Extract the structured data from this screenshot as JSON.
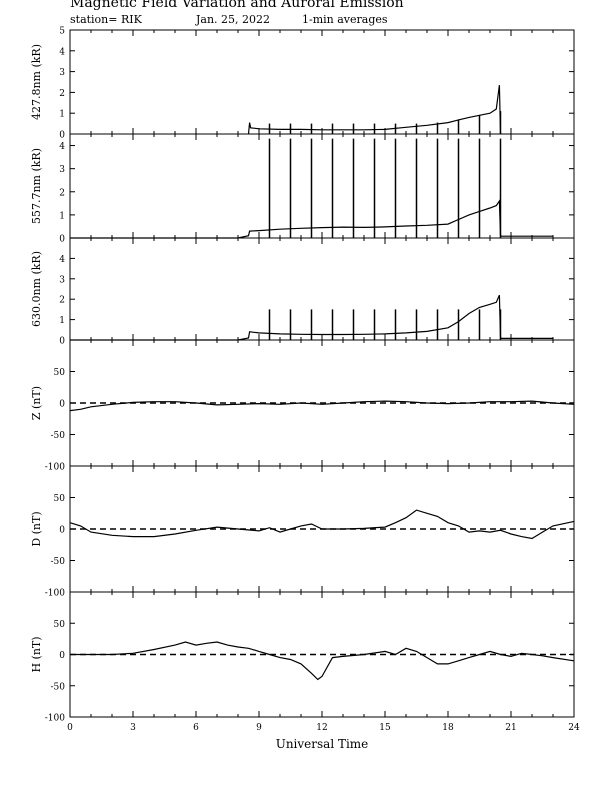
{
  "header": {
    "title": "Magnetic Field Variation and Auroral Emission",
    "station": "station= RIK",
    "date": "Jan. 25, 2022",
    "averaging": "1-min averages"
  },
  "chart_data": [
    {
      "type": "line",
      "ylabel": "427.8nm (kR)",
      "ylim": [
        0,
        5
      ],
      "yticks": [
        0,
        1,
        2,
        3,
        4,
        5
      ],
      "xlim": [
        0,
        24
      ],
      "series": [
        {
          "x": [
            8.5,
            8.55,
            8.6,
            9,
            10,
            11,
            12,
            13,
            14,
            15,
            16,
            17,
            18,
            18.5,
            19,
            19.5,
            20,
            20.3,
            20.45,
            20.5
          ],
          "y": [
            0.0,
            0.55,
            0.3,
            0.25,
            0.22,
            0.22,
            0.2,
            0.2,
            0.2,
            0.22,
            0.32,
            0.42,
            0.55,
            0.68,
            0.8,
            0.9,
            1.0,
            1.2,
            2.35,
            0.0
          ]
        }
      ],
      "spikes": {
        "x": [
          9.5,
          10.5,
          11.5,
          12.5,
          13.5,
          14.5,
          15.5,
          16.5,
          17.5,
          18.5,
          19.5,
          20.5
        ],
        "y": [
          0.5,
          0.5,
          0.5,
          0.5,
          0.5,
          0.5,
          0.5,
          0.5,
          0.55,
          0.7,
          0.9,
          1.1
        ]
      }
    },
    {
      "type": "line",
      "ylabel": "557.7nm (kR)",
      "ylim": [
        0,
        4.5
      ],
      "yticks": [
        0,
        1,
        2,
        3,
        4
      ],
      "xlim": [
        0,
        24
      ],
      "series": [
        {
          "x": [
            0,
            8,
            8.5,
            8.55,
            9,
            10,
            11,
            12,
            13,
            14,
            15,
            16,
            17,
            18,
            18.5,
            19,
            19.5,
            20,
            20.3,
            20.45,
            20.5,
            20.55,
            23
          ],
          "y": [
            0,
            0,
            0.1,
            0.3,
            0.32,
            0.38,
            0.42,
            0.45,
            0.47,
            0.46,
            0.48,
            0.52,
            0.55,
            0.6,
            0.8,
            1.0,
            1.15,
            1.3,
            1.4,
            1.6,
            0.1,
            0.08,
            0.08
          ]
        }
      ],
      "spikes": {
        "x": [
          9.5,
          10.5,
          11.5,
          12.5,
          13.5,
          14.5,
          15.5,
          16.5,
          17.5,
          18.5,
          19.5,
          20.5
        ],
        "y": [
          4.3,
          4.3,
          4.3,
          4.3,
          4.3,
          4.3,
          4.3,
          4.3,
          4.3,
          4.3,
          4.3,
          4.3
        ]
      }
    },
    {
      "type": "line",
      "ylabel": "630.0nm (kR)",
      "ylim": [
        0,
        5
      ],
      "yticks": [
        0,
        1,
        2,
        3,
        4
      ],
      "xlim": [
        0,
        24
      ],
      "series": [
        {
          "x": [
            0,
            8,
            8.5,
            8.55,
            9,
            10,
            11,
            12,
            13,
            14,
            15,
            16,
            17,
            18,
            18.5,
            19,
            19.5,
            20,
            20.3,
            20.45,
            20.5,
            20.55,
            23
          ],
          "y": [
            0,
            0,
            0.1,
            0.4,
            0.35,
            0.3,
            0.28,
            0.27,
            0.27,
            0.28,
            0.3,
            0.35,
            0.42,
            0.6,
            0.9,
            1.3,
            1.6,
            1.75,
            1.85,
            2.2,
            0.1,
            0.08,
            0.08
          ]
        }
      ],
      "spikes": {
        "x": [
          9.5,
          10.5,
          11.5,
          12.5,
          13.5,
          14.5,
          15.5,
          16.5,
          17.5,
          18.5,
          19.5,
          20.5
        ],
        "y": [
          1.5,
          1.5,
          1.5,
          1.5,
          1.5,
          1.5,
          1.5,
          1.5,
          1.5,
          1.5,
          1.5,
          1.5
        ]
      }
    },
    {
      "type": "line",
      "ylabel": "Z (nT)",
      "ylim": [
        -100,
        100
      ],
      "yticks": [
        -100,
        -50,
        0,
        50
      ],
      "xlim": [
        0,
        24
      ],
      "zero_line": true,
      "series": [
        {
          "x": [
            0,
            0.5,
            1,
            2,
            3,
            4,
            5,
            6,
            7,
            8,
            9,
            10,
            11,
            12,
            13,
            14,
            15,
            16,
            17,
            18,
            19,
            20,
            21,
            22,
            23,
            24
          ],
          "y": [
            -12,
            -10,
            -6,
            -2,
            1,
            2,
            2,
            0,
            -3,
            -2,
            -1,
            -2,
            0,
            -2,
            0,
            2,
            3,
            2,
            0,
            -1,
            0,
            2,
            2,
            3,
            0,
            -2
          ]
        }
      ]
    },
    {
      "type": "line",
      "ylabel": "D (nT)",
      "ylim": [
        -100,
        100
      ],
      "yticks": [
        -100,
        -50,
        0,
        50
      ],
      "xlim": [
        0,
        24
      ],
      "zero_line": true,
      "series": [
        {
          "x": [
            0,
            0.5,
            1,
            2,
            3,
            4,
            5,
            6,
            7,
            8,
            9,
            9.5,
            10,
            10.5,
            11,
            11.5,
            12,
            13,
            14,
            15,
            15.5,
            16,
            16.5,
            17,
            17.5,
            18,
            18.5,
            19,
            19.5,
            20,
            20.5,
            21,
            21.5,
            22,
            22.5,
            23,
            24
          ],
          "y": [
            10,
            5,
            -5,
            -10,
            -12,
            -12,
            -8,
            -2,
            3,
            0,
            -3,
            2,
            -5,
            0,
            5,
            8,
            0,
            0,
            1,
            3,
            10,
            18,
            30,
            25,
            20,
            10,
            5,
            -5,
            -3,
            -5,
            -2,
            -8,
            -12,
            -15,
            -5,
            5,
            12
          ]
        }
      ]
    },
    {
      "type": "line",
      "ylabel": "H (nT)",
      "ylim": [
        -100,
        100
      ],
      "yticks": [
        -100,
        -50,
        0,
        50
      ],
      "xlim": [
        0,
        24
      ],
      "xticks": [
        0,
        3,
        6,
        9,
        12,
        15,
        18,
        21,
        24
      ],
      "xlabel": "Universal Time",
      "zero_line": true,
      "series": [
        {
          "x": [
            0,
            1,
            2,
            3,
            4,
            5,
            5.5,
            6,
            6.5,
            7,
            7.5,
            8,
            8.5,
            9,
            9.5,
            10,
            10.5,
            11,
            11.5,
            11.8,
            12,
            12.5,
            13,
            14,
            15,
            15.5,
            16,
            16.5,
            17,
            17.5,
            18,
            18.5,
            19,
            19.5,
            20,
            20.5,
            21,
            21.5,
            22,
            22.5,
            23,
            24
          ],
          "y": [
            0,
            0,
            0,
            2,
            8,
            15,
            20,
            15,
            18,
            20,
            15,
            12,
            10,
            5,
            0,
            -5,
            -8,
            -15,
            -30,
            -40,
            -35,
            -5,
            -3,
            0,
            5,
            0,
            10,
            5,
            -5,
            -15,
            -15,
            -10,
            -5,
            0,
            5,
            0,
            -3,
            2,
            0,
            -2,
            -5,
            -10
          ]
        }
      ]
    }
  ]
}
